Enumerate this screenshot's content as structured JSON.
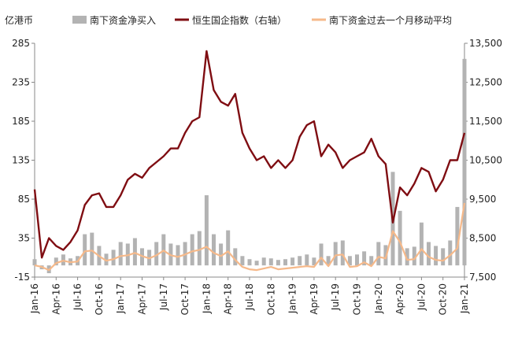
{
  "chart_data": {
    "type": "bar+line",
    "unit_label": "亿港币",
    "legend": [
      {
        "name": "南下资金净买入",
        "kind": "bar",
        "color": "#b3b3b3"
      },
      {
        "name": "恒生国企指数（右轴）",
        "kind": "line",
        "color": "#7f0d12"
      },
      {
        "name": "南下资金过去一个月移动平均",
        "kind": "line",
        "color": "#f6b98a"
      }
    ],
    "x_ticks": [
      "Jan-16",
      "Apr-16",
      "Jul-16",
      "Oct-16",
      "Jan-17",
      "Apr-17",
      "Jul-17",
      "Oct-17",
      "Jan-18",
      "Apr-18",
      "Jul-18",
      "Oct-18",
      "Jan-19",
      "Apr-19",
      "Jul-19",
      "Oct-19",
      "Jan-20",
      "Apr-20",
      "Jul-20",
      "Oct-20",
      "Jan-21"
    ],
    "y_left": {
      "min": -15,
      "max": 285,
      "ticks": [
        "-15",
        "35",
        "85",
        "135",
        "185",
        "235",
        "285"
      ]
    },
    "y_right": {
      "min": 7500,
      "max": 13500,
      "ticks": [
        "7,500",
        "8,500",
        "9,500",
        "10,500",
        "11,500",
        "12,500",
        "13,500"
      ]
    },
    "series": [
      {
        "name": "恒生国企指数（右轴）",
        "axis": "right",
        "color": "#7f0d12",
        "points": [
          [
            "Jan-16",
            9750
          ],
          [
            "Feb-16",
            8000
          ],
          [
            "Mar-16",
            8500
          ],
          [
            "Apr-16",
            8300
          ],
          [
            "May-16",
            8200
          ],
          [
            "Jun-16",
            8400
          ],
          [
            "Jul-16",
            8700
          ],
          [
            "Aug-16",
            9350
          ],
          [
            "Sep-16",
            9600
          ],
          [
            "Oct-16",
            9650
          ],
          [
            "Nov-16",
            9300
          ],
          [
            "Dec-16",
            9300
          ],
          [
            "Jan-17",
            9600
          ],
          [
            "Feb-17",
            10000
          ],
          [
            "Mar-17",
            10150
          ],
          [
            "Apr-17",
            10050
          ],
          [
            "May-17",
            10300
          ],
          [
            "Jun-17",
            10450
          ],
          [
            "Jul-17",
            10600
          ],
          [
            "Aug-17",
            10800
          ],
          [
            "Sep-17",
            10800
          ],
          [
            "Oct-17",
            11200
          ],
          [
            "Nov-17",
            11500
          ],
          [
            "Dec-17",
            11600
          ],
          [
            "Jan-18",
            13300
          ],
          [
            "Feb-18",
            12300
          ],
          [
            "Mar-18",
            12000
          ],
          [
            "Apr-18",
            11900
          ],
          [
            "May-18",
            12200
          ],
          [
            "Jun-18",
            11200
          ],
          [
            "Jul-18",
            10800
          ],
          [
            "Aug-18",
            10500
          ],
          [
            "Sep-18",
            10600
          ],
          [
            "Oct-18",
            10300
          ],
          [
            "Nov-18",
            10500
          ],
          [
            "Dec-18",
            10300
          ],
          [
            "Jan-19",
            10500
          ],
          [
            "Feb-19",
            11100
          ],
          [
            "Mar-19",
            11400
          ],
          [
            "Apr-19",
            11500
          ],
          [
            "May-19",
            10600
          ],
          [
            "Jun-19",
            10900
          ],
          [
            "Jul-19",
            10700
          ],
          [
            "Aug-19",
            10300
          ],
          [
            "Sep-19",
            10500
          ],
          [
            "Oct-19",
            10600
          ],
          [
            "Nov-19",
            10700
          ],
          [
            "Dec-19",
            11050
          ],
          [
            "Jan-20",
            10600
          ],
          [
            "Feb-20",
            10400
          ],
          [
            "Mar-20",
            8900
          ],
          [
            "Apr-20",
            9800
          ],
          [
            "May-20",
            9600
          ],
          [
            "Jun-20",
            9900
          ],
          [
            "Jul-20",
            10300
          ],
          [
            "Aug-20",
            10200
          ],
          [
            "Sep-20",
            9700
          ],
          [
            "Oct-20",
            10000
          ],
          [
            "Nov-20",
            10500
          ],
          [
            "Dec-20",
            10500
          ],
          [
            "Jan-21",
            11200
          ]
        ]
      },
      {
        "name": "南下资金过去一个月移动平均",
        "axis": "left",
        "color": "#f6b98a",
        "points": [
          [
            "Jan-16",
            0
          ],
          [
            "Feb-16",
            -2
          ],
          [
            "Mar-16",
            -6
          ],
          [
            "Apr-16",
            3
          ],
          [
            "May-16",
            6
          ],
          [
            "Jun-16",
            4
          ],
          [
            "Jul-16",
            5
          ],
          [
            "Aug-16",
            18
          ],
          [
            "Sep-16",
            19
          ],
          [
            "Oct-16",
            12
          ],
          [
            "Nov-16",
            6
          ],
          [
            "Dec-16",
            8
          ],
          [
            "Jan-17",
            12
          ],
          [
            "Feb-17",
            13
          ],
          [
            "Mar-17",
            16
          ],
          [
            "Apr-17",
            12
          ],
          [
            "May-17",
            9
          ],
          [
            "Jun-17",
            13
          ],
          [
            "Jul-17",
            19
          ],
          [
            "Aug-17",
            13
          ],
          [
            "Sep-17",
            11
          ],
          [
            "Oct-17",
            14
          ],
          [
            "Nov-17",
            18
          ],
          [
            "Dec-17",
            20
          ],
          [
            "Jan-18",
            24
          ],
          [
            "Feb-18",
            16
          ],
          [
            "Mar-18",
            12
          ],
          [
            "Apr-18",
            18
          ],
          [
            "May-18",
            7
          ],
          [
            "Jun-18",
            -2
          ],
          [
            "Jul-18",
            -5
          ],
          [
            "Aug-18",
            -6
          ],
          [
            "Sep-18",
            -4
          ],
          [
            "Oct-18",
            -2
          ],
          [
            "Nov-18",
            -5
          ],
          [
            "Dec-18",
            -4
          ],
          [
            "Jan-19",
            -3
          ],
          [
            "Feb-19",
            -2
          ],
          [
            "Mar-19",
            -1
          ],
          [
            "Apr-19",
            -2
          ],
          [
            "May-19",
            10
          ],
          [
            "Jun-19",
            -1
          ],
          [
            "Jul-19",
            13
          ],
          [
            "Aug-19",
            14
          ],
          [
            "Sep-19",
            -2
          ],
          [
            "Oct-19",
            -1
          ],
          [
            "Nov-19",
            4
          ],
          [
            "Dec-19",
            -1
          ],
          [
            "Jan-20",
            11
          ],
          [
            "Feb-20",
            9
          ],
          [
            "Mar-20",
            44
          ],
          [
            "Apr-20",
            30
          ],
          [
            "May-20",
            7
          ],
          [
            "Jun-20",
            8
          ],
          [
            "Jul-20",
            21
          ],
          [
            "Aug-20",
            11
          ],
          [
            "Sep-20",
            7
          ],
          [
            "Oct-20",
            6
          ],
          [
            "Nov-20",
            13
          ],
          [
            "Dec-20",
            22
          ],
          [
            "Jan-21",
            80
          ]
        ]
      },
      {
        "name": "南下资金净买入",
        "axis": "left",
        "color": "#b3b3b3",
        "points": [
          [
            "Jan-16",
            8
          ],
          [
            "Feb-16",
            -5
          ],
          [
            "Mar-16",
            -10
          ],
          [
            "Apr-16",
            10
          ],
          [
            "May-16",
            14
          ],
          [
            "Jun-16",
            9
          ],
          [
            "Jul-16",
            12
          ],
          [
            "Aug-16",
            40
          ],
          [
            "Sep-16",
            42
          ],
          [
            "Oct-16",
            25
          ],
          [
            "Nov-16",
            15
          ],
          [
            "Dec-16",
            20
          ],
          [
            "Jan-17",
            30
          ],
          [
            "Feb-17",
            28
          ],
          [
            "Mar-17",
            35
          ],
          [
            "Apr-17",
            22
          ],
          [
            "May-17",
            20
          ],
          [
            "Jun-17",
            30
          ],
          [
            "Jul-17",
            40
          ],
          [
            "Aug-17",
            28
          ],
          [
            "Sep-17",
            26
          ],
          [
            "Oct-17",
            30
          ],
          [
            "Nov-17",
            40
          ],
          [
            "Dec-17",
            44
          ],
          [
            "Jan-18",
            90
          ],
          [
            "Feb-18",
            40
          ],
          [
            "Mar-18",
            28
          ],
          [
            "Apr-18",
            45
          ],
          [
            "May-18",
            22
          ],
          [
            "Jun-18",
            12
          ],
          [
            "Jul-18",
            8
          ],
          [
            "Aug-18",
            6
          ],
          [
            "Sep-18",
            10
          ],
          [
            "Oct-18",
            9
          ],
          [
            "Nov-18",
            7
          ],
          [
            "Dec-18",
            8
          ],
          [
            "Jan-19",
            10
          ],
          [
            "Feb-19",
            12
          ],
          [
            "Mar-19",
            14
          ],
          [
            "Apr-19",
            10
          ],
          [
            "May-19",
            28
          ],
          [
            "Jun-19",
            12
          ],
          [
            "Jul-19",
            30
          ],
          [
            "Aug-19",
            32
          ],
          [
            "Sep-19",
            12
          ],
          [
            "Oct-19",
            14
          ],
          [
            "Nov-19",
            18
          ],
          [
            "Dec-19",
            12
          ],
          [
            "Jan-20",
            30
          ],
          [
            "Feb-20",
            26
          ],
          [
            "Mar-20",
            120
          ],
          [
            "Apr-20",
            70
          ],
          [
            "May-20",
            22
          ],
          [
            "Jun-20",
            24
          ],
          [
            "Jul-20",
            55
          ],
          [
            "Aug-20",
            30
          ],
          [
            "Sep-20",
            25
          ],
          [
            "Oct-20",
            22
          ],
          [
            "Nov-20",
            32
          ],
          [
            "Dec-20",
            75
          ],
          [
            "Jan-21",
            265
          ]
        ]
      }
    ]
  }
}
